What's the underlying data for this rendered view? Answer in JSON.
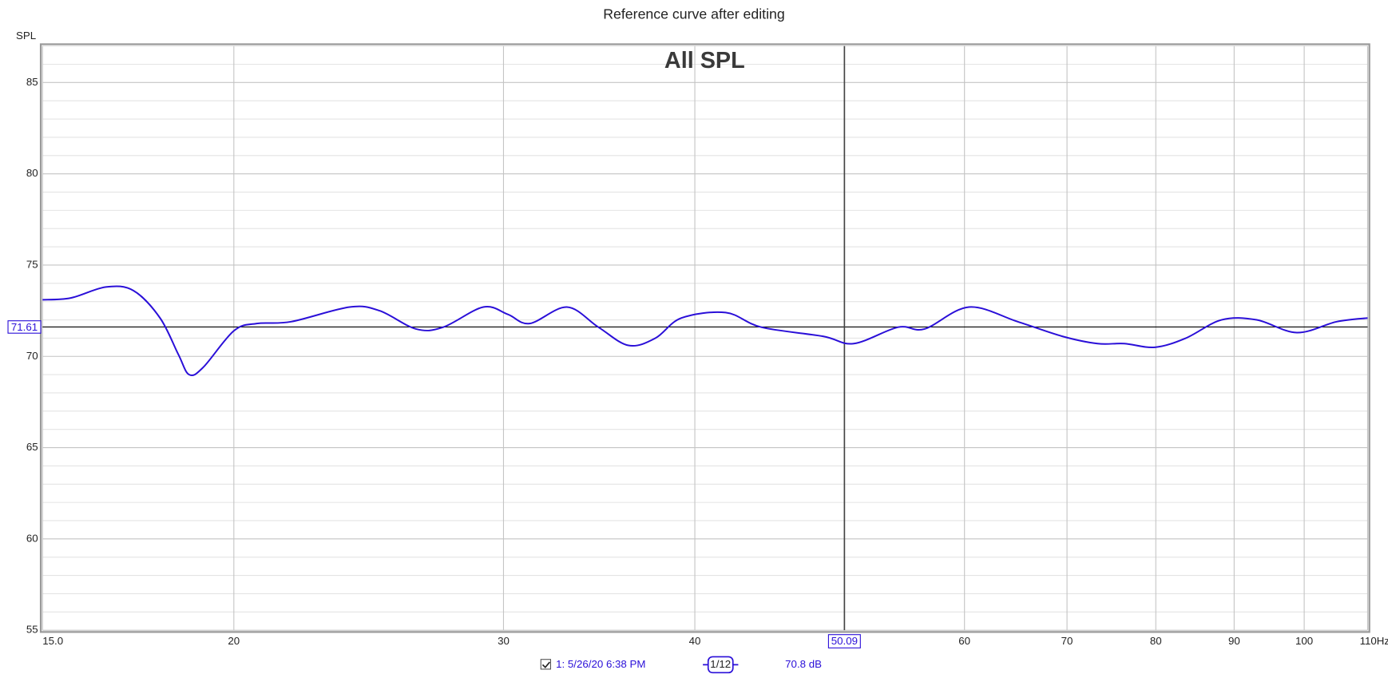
{
  "chart_data": {
    "type": "line",
    "title": "Reference curve after editing",
    "plot_title": "All SPL",
    "y_label": "SPL",
    "xscale": "log",
    "x": [
      15.0,
      15.65,
      16.5,
      17.2,
      17.9,
      18.4,
      18.7,
      19.1,
      20,
      20.7,
      21.8,
      23.8,
      24.9,
      26.3,
      27.4,
      29.1,
      30.2,
      31.2,
      33.0,
      34.6,
      36.2,
      37.7,
      39.2,
      41.9,
      44.2,
      48.5,
      50.8,
      54.3,
      56.5,
      60.4,
      65.0,
      69.5,
      73.3,
      76.3,
      79.9,
      83.7,
      88.3,
      93.1,
      98.9,
      105,
      110
    ],
    "series": [
      {
        "name": "1: 5/26/20 6:38 PM",
        "color": "#2a0fd8",
        "values": [
          73.1,
          73.2,
          73.8,
          73.6,
          72.1,
          70.1,
          69.0,
          69.4,
          71.4,
          71.8,
          71.9,
          72.7,
          72.5,
          71.5,
          71.6,
          72.7,
          72.3,
          71.8,
          72.7,
          71.6,
          70.6,
          71.0,
          72.1,
          72.4,
          71.6,
          71.1,
          70.7,
          71.6,
          71.5,
          72.7,
          71.9,
          71.1,
          70.7,
          70.7,
          70.5,
          71.0,
          72.0,
          72.0,
          71.3,
          71.9,
          72.1
        ]
      }
    ],
    "smoothing": "1/12",
    "cursor_readout": "70.8 dB",
    "cursor_x": 50.09,
    "reference_y": 71.61,
    "xlim": [
      15,
      110
    ],
    "ylim": [
      55,
      87
    ],
    "xticks": [
      {
        "value": 15,
        "label": "15.0"
      },
      20,
      30,
      40,
      60,
      70,
      80,
      90,
      100,
      {
        "value": 110,
        "label": "110Hz"
      }
    ],
    "yticks": [
      55,
      60,
      65,
      70,
      75,
      80,
      85
    ],
    "grid": true,
    "minor_grid": true
  }
}
